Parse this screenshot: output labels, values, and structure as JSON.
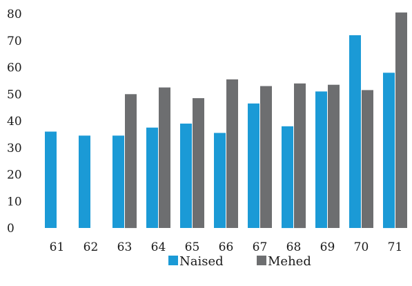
{
  "chart_data": {
    "type": "bar",
    "categories": [
      "61",
      "62",
      "63",
      "64",
      "65",
      "66",
      "67",
      "68",
      "69",
      "70",
      "71"
    ],
    "series": [
      {
        "name": "Naised",
        "color": "#1b9ad6",
        "values": [
          36,
          34.5,
          34.5,
          37.5,
          39,
          35.5,
          46.5,
          38,
          51,
          72,
          58
        ]
      },
      {
        "name": "Mehed",
        "color": "#6d6e70",
        "values": [
          null,
          null,
          50,
          52.5,
          48.5,
          55.5,
          53,
          54,
          53.5,
          51.5,
          80.5
        ]
      }
    ],
    "y_ticks": [
      "0",
      "10",
      "20",
      "30",
      "40",
      "50",
      "60",
      "70",
      "80"
    ],
    "ylim": [
      0,
      80
    ],
    "grid": false,
    "legend_position": "bottom-center",
    "title": "",
    "xlabel": "",
    "ylabel": ""
  }
}
